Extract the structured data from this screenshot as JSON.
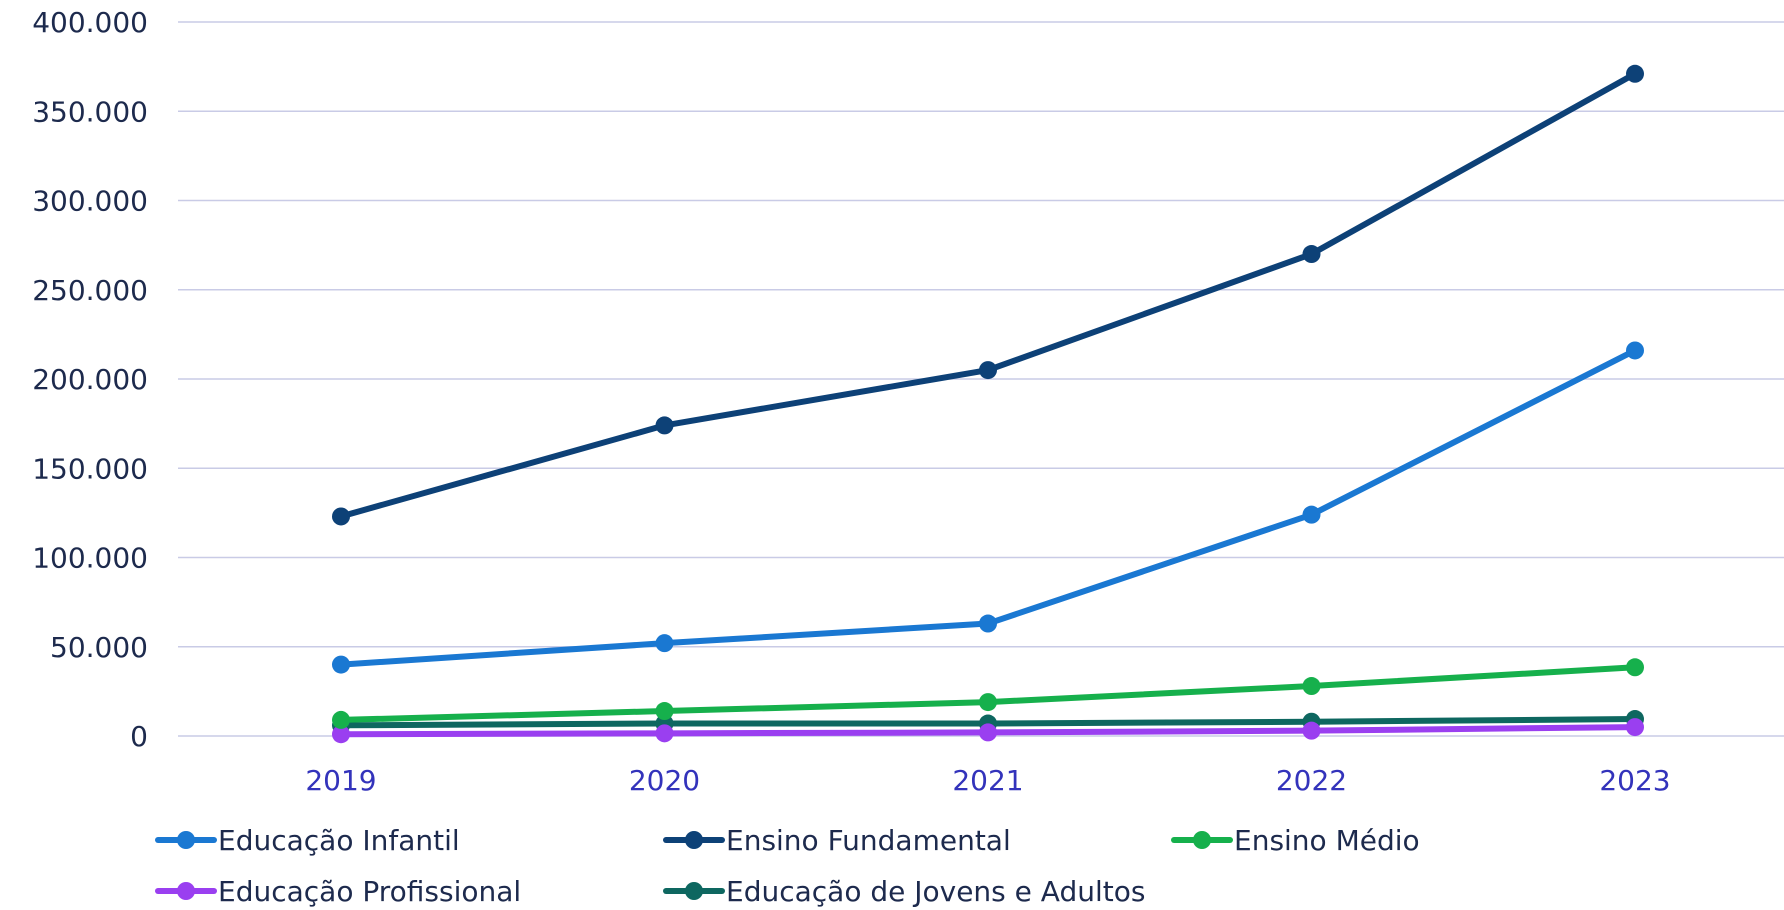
{
  "chart_data": {
    "type": "line",
    "title": "",
    "xlabel": "",
    "ylabel": "",
    "categories": [
      "2019",
      "2020",
      "2021",
      "2022",
      "2023"
    ],
    "ylim": [
      0,
      400000
    ],
    "y_ticks": [
      0,
      50000,
      100000,
      150000,
      200000,
      250000,
      300000,
      350000,
      400000
    ],
    "y_tick_labels": [
      "0",
      "50.000",
      "100.000",
      "150.000",
      "200.000",
      "250.000",
      "300.000",
      "350.000",
      "400.000"
    ],
    "grid": true,
    "legend_position": "bottom",
    "series": [
      {
        "name": "Educação Infantil",
        "color": "#1a78d2",
        "values": [
          40000,
          52000,
          63000,
          124000,
          216000
        ]
      },
      {
        "name": "Ensino Fundamental",
        "color": "#0d4177",
        "values": [
          123000,
          174000,
          205000,
          270000,
          371000
        ]
      },
      {
        "name": "Ensino Médio",
        "color": "#16b04c",
        "values": [
          9000,
          14000,
          19000,
          28000,
          38500
        ]
      },
      {
        "name": "Educação Profissional",
        "color": "#9a3ff0",
        "values": [
          1000,
          1500,
          2000,
          3000,
          5000
        ]
      },
      {
        "name": "Educação de Jovens e Adultos",
        "color": "#0e6760",
        "values": [
          6000,
          7000,
          7000,
          8000,
          9500
        ]
      }
    ]
  }
}
